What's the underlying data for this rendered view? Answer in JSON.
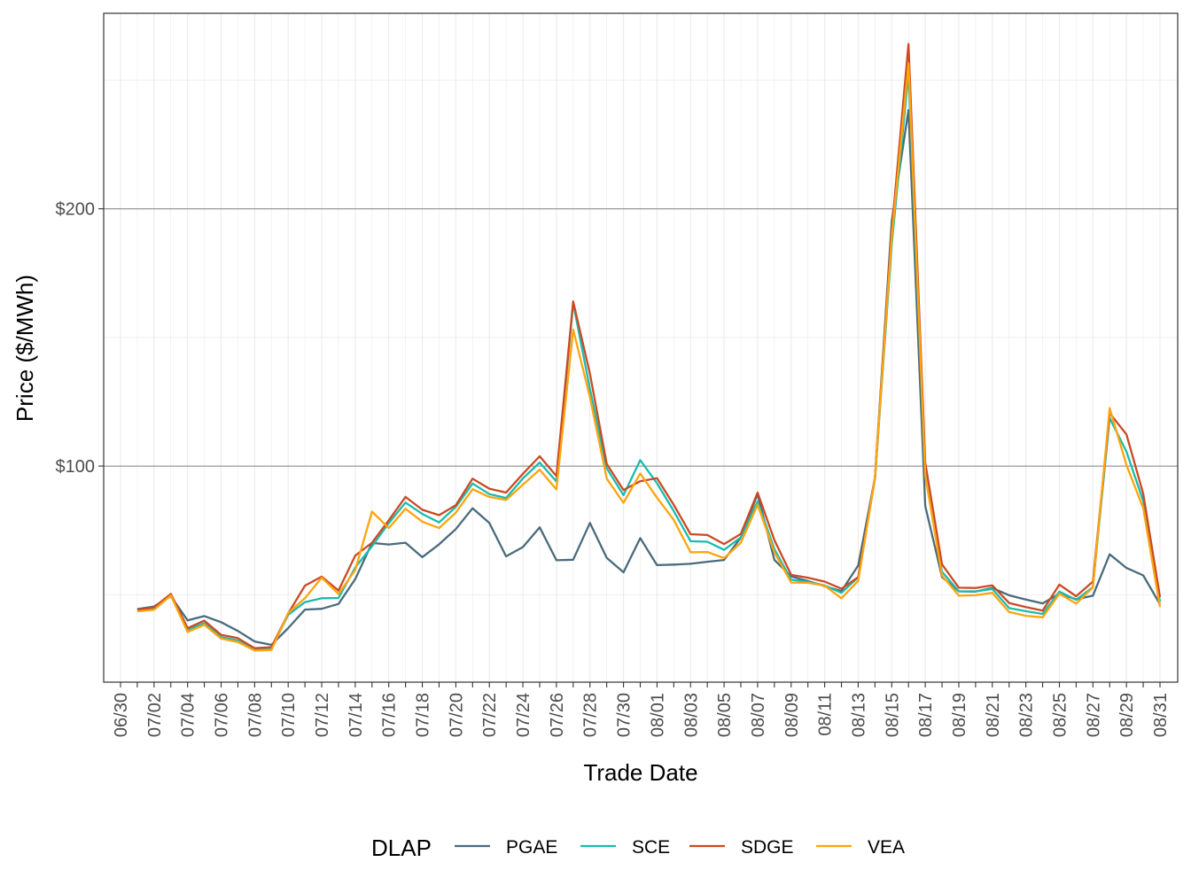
{
  "chart_data": {
    "type": "line",
    "title": "",
    "xlabel": "Trade Date",
    "ylabel": "Price ($/MWh)",
    "ylim": [
      16,
      276
    ],
    "x_axis_tick_labels": [
      "06/30",
      "07/02",
      "07/04",
      "07/06",
      "07/08",
      "07/10",
      "07/12",
      "07/14",
      "07/16",
      "07/18",
      "07/20",
      "07/22",
      "07/24",
      "07/26",
      "07/28",
      "07/30",
      "08/01",
      "08/03",
      "08/05",
      "08/07",
      "08/09",
      "08/11",
      "08/13",
      "08/15",
      "08/17",
      "08/19",
      "08/21",
      "08/23",
      "08/25",
      "08/27",
      "08/29",
      "08/31"
    ],
    "y_axis_tick_labels": [
      "$100",
      "$200"
    ],
    "y_axis_tick_values": [
      100,
      200
    ],
    "grid": true,
    "legend": {
      "title": "DLAP",
      "position": "bottom"
    },
    "x": [
      "07/01",
      "07/02",
      "07/03",
      "07/04",
      "07/05",
      "07/06",
      "07/07",
      "07/08",
      "07/09",
      "07/10",
      "07/11",
      "07/12",
      "07/13",
      "07/14",
      "07/15",
      "07/16",
      "07/17",
      "07/18",
      "07/19",
      "07/20",
      "07/21",
      "07/22",
      "07/23",
      "07/24",
      "07/25",
      "07/26",
      "07/27",
      "07/28",
      "07/29",
      "07/30",
      "07/31",
      "08/01",
      "08/02",
      "08/03",
      "08/04",
      "08/05",
      "08/06",
      "08/07",
      "08/08",
      "08/09",
      "08/10",
      "08/11",
      "08/12",
      "08/13",
      "08/14",
      "08/15",
      "08/16",
      "08/17",
      "08/18",
      "08/19",
      "08/20",
      "08/21",
      "08/22",
      "08/23",
      "08/24",
      "08/25",
      "08/26",
      "08/27",
      "08/28",
      "08/29",
      "08/30",
      "08/31"
    ],
    "series": [
      {
        "name": "PGAE",
        "color": "#4a6b7c",
        "values": [
          44.4,
          45.4,
          49.4,
          40.0,
          41.7,
          39.3,
          35.9,
          31.8,
          30.5,
          37.0,
          44.2,
          44.5,
          46.4,
          56.1,
          70.1,
          69.5,
          70.2,
          64.6,
          69.6,
          75.5,
          83.6,
          77.9,
          64.9,
          68.5,
          76.2,
          63.4,
          63.6,
          77.9,
          64.3,
          58.7,
          72.0,
          61.5,
          61.7,
          62.0,
          62.8,
          63.5,
          72.2,
          89.1,
          63.5,
          57.1,
          55.3,
          53.3,
          51.4,
          61.4,
          95.5,
          195.1,
          238.4,
          84.5,
          56.9,
          51.3,
          51.2,
          52.6,
          49.8,
          48.1,
          46.6,
          50.4,
          48.2,
          49.6,
          65.7,
          60.4,
          57.5,
          46.3
        ]
      },
      {
        "name": "SCE",
        "color": "#1abcad",
        "values": [
          43.9,
          44.8,
          49.7,
          36.4,
          38.9,
          33.5,
          32.2,
          28.6,
          28.9,
          42.2,
          47.1,
          48.6,
          48.7,
          60.6,
          68.8,
          77.8,
          85.8,
          81.4,
          78.1,
          84.1,
          93.2,
          89.1,
          87.6,
          95.2,
          101.4,
          94.0,
          163.4,
          130.0,
          99.1,
          88.7,
          102.3,
          93.3,
          82.5,
          70.8,
          70.6,
          67.4,
          72.3,
          86.2,
          67.7,
          55.8,
          55.0,
          53.6,
          50.7,
          56.8,
          95.1,
          186.2,
          252.5,
          96.7,
          58.9,
          51.3,
          51.3,
          52.2,
          44.8,
          43.6,
          42.5,
          51.2,
          48.0,
          53.0,
          118.7,
          105.6,
          86.4,
          47.2
        ]
      },
      {
        "name": "SDGE",
        "color": "#cb4a24",
        "values": [
          44.1,
          45.1,
          50.3,
          37.0,
          39.9,
          34.4,
          33.1,
          29.2,
          29.6,
          42.7,
          53.5,
          57.0,
          51.6,
          65.2,
          70.2,
          78.9,
          88.0,
          83.0,
          80.9,
          84.8,
          95.1,
          91.2,
          89.7,
          97.0,
          103.8,
          96.1,
          164.0,
          135.9,
          100.8,
          90.7,
          94.1,
          95.3,
          84.9,
          73.5,
          73.2,
          69.7,
          73.6,
          89.7,
          71.2,
          57.7,
          56.6,
          55.1,
          52.3,
          56.8,
          95.6,
          191.6,
          264.1,
          101.4,
          61.8,
          52.7,
          52.6,
          53.6,
          46.8,
          45.2,
          43.8,
          53.9,
          49.4,
          55.1,
          120.6,
          112.3,
          89.2,
          49.1
        ]
      },
      {
        "name": "VEA",
        "color": "#ffa40f",
        "values": [
          43.5,
          44.1,
          49.7,
          35.5,
          38.3,
          32.9,
          31.6,
          28.3,
          28.5,
          42.9,
          48.6,
          56.6,
          50.3,
          59.6,
          82.3,
          75.9,
          83.4,
          78.4,
          75.9,
          81.9,
          91.0,
          88.0,
          86.8,
          92.8,
          98.6,
          90.9,
          153.1,
          126.8,
          95.1,
          85.7,
          97.1,
          87.7,
          79.1,
          66.5,
          66.6,
          64.2,
          70.2,
          85.0,
          66.4,
          54.7,
          54.6,
          53.5,
          48.6,
          55.4,
          95.6,
          188.9,
          256.5,
          96.5,
          57.5,
          49.6,
          49.8,
          50.7,
          43.3,
          41.8,
          41.2,
          50.4,
          46.5,
          52.8,
          122.5,
          100.4,
          83.6,
          45.2
        ]
      }
    ]
  }
}
